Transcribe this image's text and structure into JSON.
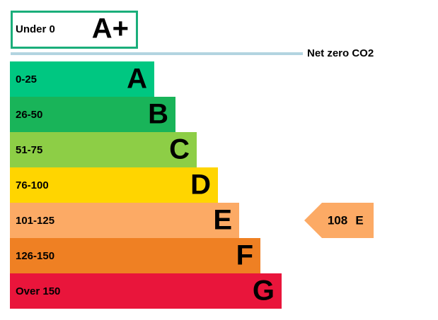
{
  "top_band": {
    "range": "Under 0",
    "letter": "A+"
  },
  "net_zero_label": "Net zero CO2",
  "bands": [
    {
      "range": "0-25",
      "letter": "A",
      "color": "#00c781"
    },
    {
      "range": "26-50",
      "letter": "B",
      "color": "#19b459"
    },
    {
      "range": "51-75",
      "letter": "C",
      "color": "#8dce46"
    },
    {
      "range": "76-100",
      "letter": "D",
      "color": "#ffd500"
    },
    {
      "range": "101-125",
      "letter": "E",
      "color": "#fcaa65"
    },
    {
      "range": "126-150",
      "letter": "F",
      "color": "#ef8023"
    },
    {
      "range": "Over 150",
      "letter": "G",
      "color": "#e9153b"
    }
  ],
  "current_rating": {
    "value": 108,
    "letter": "E"
  }
}
